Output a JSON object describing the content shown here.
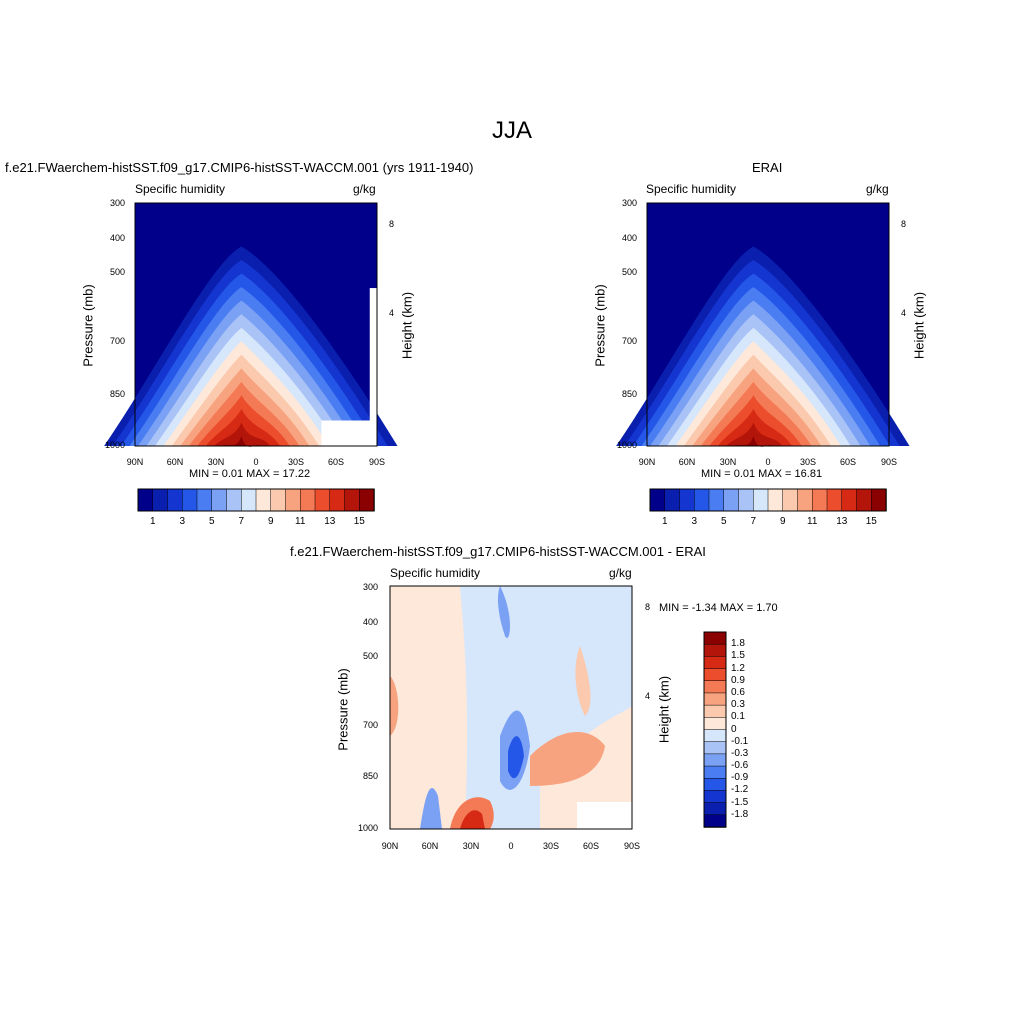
{
  "page": {
    "title": "JJA"
  },
  "panels": [
    {
      "id": "model",
      "title": "f.e21.FWaerchem-histSST.f09_g17.CMIP6-histSST-WACCM.001 (yrs 1911-1940)",
      "variable": "Specific humidity",
      "units": "g/kg",
      "ylabel": "Pressure (mb)",
      "rlabel": "Height (km)",
      "stats": "MIN =   0.01  MAX =  17.22",
      "xticks": [
        "90N",
        "60N",
        "30N",
        "0",
        "30S",
        "60S",
        "90S"
      ],
      "yticks": [
        "300",
        "400",
        "500",
        "700",
        "850",
        "1000"
      ],
      "rticks": [
        "8",
        "4"
      ]
    },
    {
      "id": "erai",
      "title": "ERAI",
      "variable": "Specific humidity",
      "units": "g/kg",
      "ylabel": "Pressure (mb)",
      "rlabel": "Height (km)",
      "stats": "MIN =   0.01  MAX =  16.81",
      "xticks": [
        "90N",
        "60N",
        "30N",
        "0",
        "30S",
        "60S",
        "90S"
      ],
      "yticks": [
        "300",
        "400",
        "500",
        "700",
        "850",
        "1000"
      ],
      "rticks": [
        "8",
        "4"
      ]
    },
    {
      "id": "diff",
      "title": "f.e21.FWaerchem-histSST.f09_g17.CMIP6-histSST-WACCM.001 - ERAI",
      "variable": "Specific humidity",
      "units": "g/kg",
      "ylabel": "Pressure (mb)",
      "rlabel": "Height (km)",
      "stats": "MIN =  -1.34  MAX =   1.70",
      "xticks": [
        "90N",
        "60N",
        "30N",
        "0",
        "30S",
        "60S",
        "90S"
      ],
      "yticks": [
        "300",
        "400",
        "500",
        "700",
        "850",
        "1000"
      ],
      "rticks": [
        "8",
        "4"
      ]
    }
  ],
  "colorbar_top": {
    "labels": [
      "1",
      "3",
      "5",
      "7",
      "9",
      "11",
      "13",
      "15"
    ],
    "colors": [
      "#00008b",
      "#0a1fae",
      "#1435d0",
      "#2457e8",
      "#4a7df2",
      "#7ba1f5",
      "#a9c3f7",
      "#d6e6fb",
      "#fde8da",
      "#fbc9ad",
      "#f7a37f",
      "#f37a55",
      "#ec4d2c",
      "#d62a14",
      "#b3150a",
      "#8b0000"
    ]
  },
  "colorbar_diff": {
    "labels": [
      "1.8",
      "1.5",
      "1.2",
      "0.9",
      "0.6",
      "0.3",
      "0.1",
      "0",
      "-0.1",
      "-0.3",
      "-0.6",
      "-0.9",
      "-1.2",
      "-1.5",
      "-1.8"
    ],
    "colors": [
      "#8b0000",
      "#b3150a",
      "#d62a14",
      "#ec4d2c",
      "#f37a55",
      "#f7a37f",
      "#fbc9ad",
      "#fde8da",
      "#d6e6fb",
      "#a9c3f7",
      "#7ba1f5",
      "#4a7df2",
      "#2457e8",
      "#1435d0",
      "#0a1fae",
      "#00008b"
    ]
  },
  "chart_data": [
    {
      "type": "heatmap",
      "title": "f.e21.FWaerchem-histSST.f09_g17.CMIP6-histSST-WACCM.001 (yrs 1911-1940)",
      "subtitle": "Specific humidity",
      "units": "g/kg",
      "xlabel": "",
      "ylabel": "Pressure (mb)",
      "y2label": "Height (km)",
      "x_categories": [
        "90N",
        "60N",
        "30N",
        "0",
        "30S",
        "60S",
        "90S"
      ],
      "xlim": [
        90,
        -90
      ],
      "ylim": [
        1000,
        300
      ],
      "yscale": "log",
      "contour_levels": [
        1,
        2,
        3,
        4,
        5,
        6,
        7,
        8,
        9,
        10,
        11,
        12,
        13,
        14,
        15
      ],
      "min": 0.01,
      "max": 17.22,
      "max_location": {
        "lat": 7,
        "pressure_mb": 1000
      }
    },
    {
      "type": "heatmap",
      "title": "ERAI",
      "subtitle": "Specific humidity",
      "units": "g/kg",
      "ylabel": "Pressure (mb)",
      "y2label": "Height (km)",
      "x_categories": [
        "90N",
        "60N",
        "30N",
        "0",
        "30S",
        "60S",
        "90S"
      ],
      "xlim": [
        90,
        -90
      ],
      "ylim": [
        1000,
        300
      ],
      "yscale": "log",
      "contour_levels": [
        1,
        2,
        3,
        4,
        5,
        6,
        7,
        8,
        9,
        10,
        11,
        12,
        13,
        14,
        15
      ],
      "min": 0.01,
      "max": 16.81,
      "max_location": {
        "lat": 7,
        "pressure_mb": 1000
      }
    },
    {
      "type": "heatmap",
      "title": "f.e21.FWaerchem-histSST.f09_g17.CMIP6-histSST-WACCM.001 - ERAI",
      "subtitle": "Specific humidity",
      "units": "g/kg",
      "ylabel": "Pressure (mb)",
      "y2label": "Height (km)",
      "x_categories": [
        "90N",
        "60N",
        "30N",
        "0",
        "30S",
        "60S",
        "90S"
      ],
      "xlim": [
        90,
        -90
      ],
      "ylim": [
        1000,
        300
      ],
      "yscale": "log",
      "contour_levels": [
        -1.8,
        -1.5,
        -1.2,
        -0.9,
        -0.6,
        -0.3,
        -0.1,
        0,
        0.1,
        0.3,
        0.6,
        0.9,
        1.2,
        1.5,
        1.8
      ],
      "min": -1.34,
      "max": 1.7
    }
  ]
}
